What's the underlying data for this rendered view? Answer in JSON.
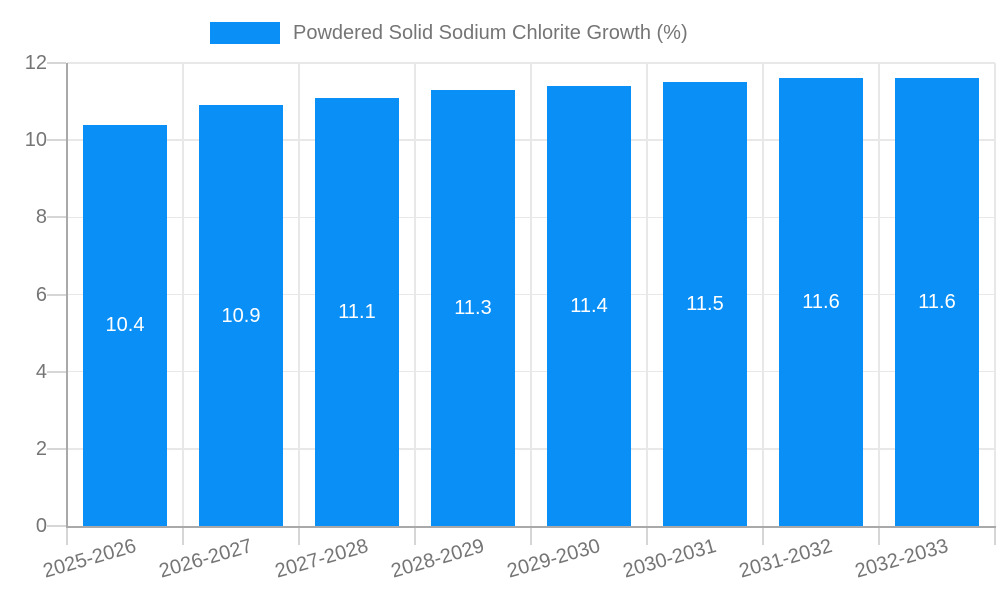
{
  "chart_data": {
    "type": "bar",
    "title": "Powdered Solid Sodium Chlorite Growth (%)",
    "legend": {
      "label": "Powdered Solid Sodium Chlorite Growth (%)",
      "position": "top"
    },
    "categories": [
      "2025-2026",
      "2026-2027",
      "2027-2028",
      "2028-2029",
      "2029-2030",
      "2030-2031",
      "2031-2032",
      "2032-2033"
    ],
    "series": [
      {
        "name": "Powdered Solid Sodium Chlorite Growth (%)",
        "values": [
          10.4,
          10.9,
          11.1,
          11.3,
          11.4,
          11.5,
          11.6,
          11.6
        ]
      }
    ],
    "value_labels": [
      "10.4",
      "10.9",
      "11.1",
      "11.3",
      "11.4",
      "11.5",
      "11.6",
      "11.6"
    ],
    "xlabel": "",
    "ylabel": "",
    "ylim": [
      0,
      12
    ],
    "yticks": [
      0,
      2,
      4,
      6,
      8,
      10,
      12
    ],
    "ytick_labels": [
      "0",
      "2",
      "4",
      "6",
      "8",
      "10",
      "12"
    ],
    "grid": true,
    "colors": {
      "bar": "#0a8ff7",
      "axis_text": "#757575",
      "axis_line": "#a9a9a9",
      "gridline": "#e8e8e8",
      "tick": "#d6d6d6",
      "value_label": "#ffffff",
      "background": "#ffffff"
    }
  }
}
